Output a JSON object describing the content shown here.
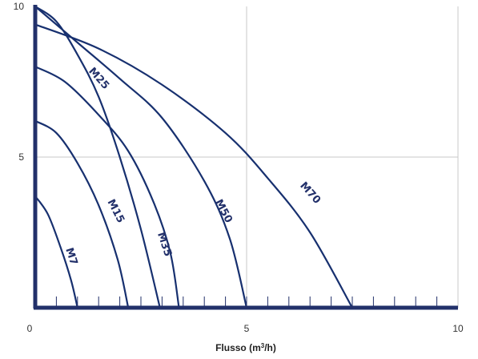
{
  "chart_data": {
    "type": "line",
    "title": "",
    "xlabel": "Flusso (m",
    "xlabel_sup": "3",
    "xlabel_suffix": "/h)",
    "ylabel": "",
    "xlim": [
      0,
      10
    ],
    "ylim": [
      0,
      10
    ],
    "x_ticks": [
      0,
      5,
      10
    ],
    "y_ticks": [
      5,
      10
    ],
    "grid": true,
    "legend": "none",
    "colors": {
      "axis": "#22306a",
      "grid": "#c8c8c8",
      "curve": "#1e3f8a",
      "curve_dark": "#17306f",
      "label": "#22306a"
    },
    "series": [
      {
        "name": "M7",
        "x": [
          0,
          0.3,
          0.6,
          0.85,
          1.0
        ],
        "y": [
          3.7,
          3.1,
          2.0,
          0.9,
          0
        ]
      },
      {
        "name": "M15",
        "x": [
          0,
          0.5,
          1.0,
          1.5,
          1.95,
          2.2
        ],
        "y": [
          6.2,
          5.8,
          4.8,
          3.4,
          1.6,
          0
        ]
      },
      {
        "name": "M25",
        "x": [
          0,
          0.5,
          1.0,
          1.5,
          2.0,
          2.5,
          2.95
        ],
        "y": [
          10.0,
          9.5,
          8.4,
          7.0,
          5.0,
          2.6,
          0
        ]
      },
      {
        "name": "M35",
        "x": [
          0,
          0.7,
          1.5,
          2.2,
          2.8,
          3.2,
          3.4
        ],
        "y": [
          8.0,
          7.5,
          6.4,
          5.2,
          3.5,
          1.8,
          0
        ]
      },
      {
        "name": "M50",
        "x": [
          0,
          1.0,
          2.0,
          3.0,
          4.0,
          4.6,
          5.0
        ],
        "y": [
          10.0,
          8.8,
          7.6,
          6.3,
          4.2,
          2.3,
          0
        ]
      },
      {
        "name": "M70",
        "x": [
          0,
          1.5,
          3.0,
          4.5,
          5.5,
          6.5,
          7.5
        ],
        "y": [
          9.4,
          8.6,
          7.4,
          5.8,
          4.3,
          2.5,
          0
        ]
      }
    ]
  }
}
